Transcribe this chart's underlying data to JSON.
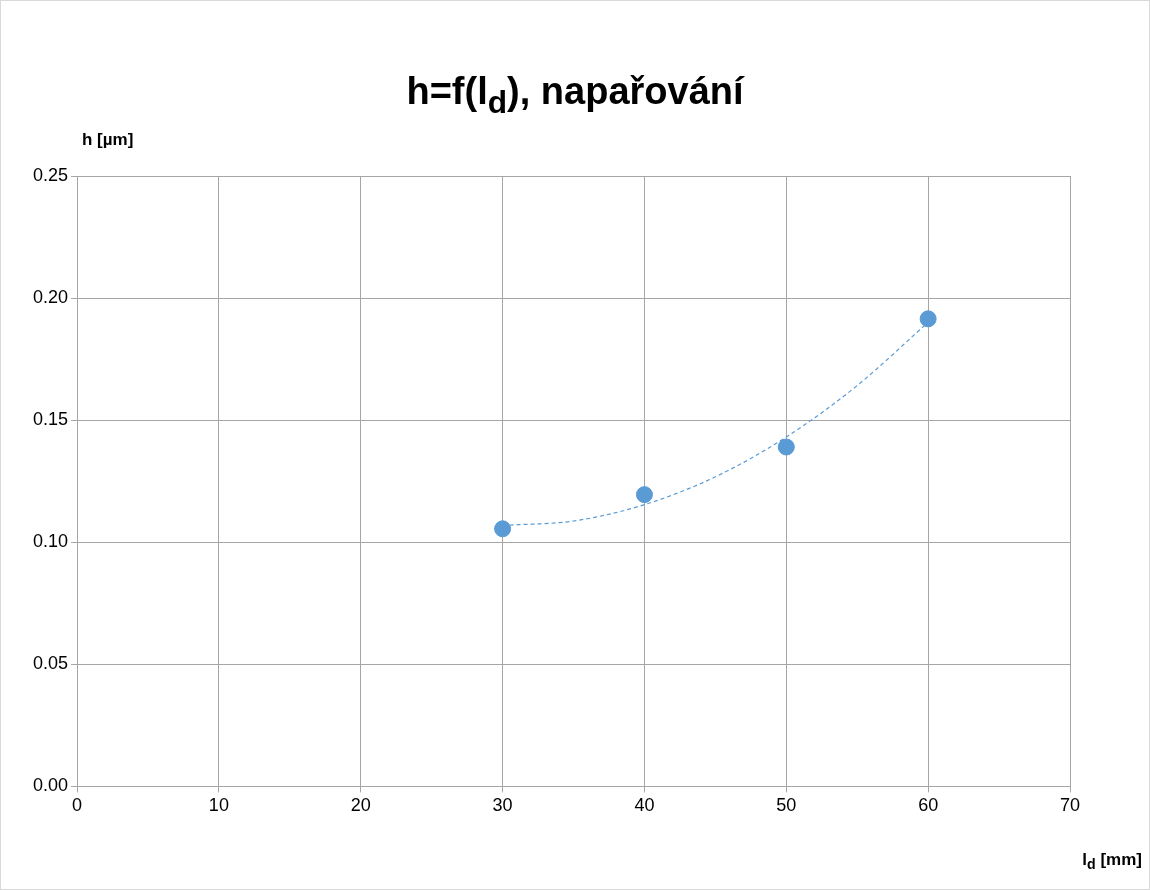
{
  "chart_data": {
    "type": "scatter",
    "title": "h=f(l$_{d}$), napařování",
    "xlabel": "l$_{d}$ [mm]",
    "ylabel": "h [µm]",
    "xlim": [
      0,
      70
    ],
    "xticks": [
      0,
      10,
      20,
      30,
      40,
      50,
      60,
      70
    ],
    "ylim": [
      0,
      0.25
    ],
    "yticks": [
      {
        "value": 0,
        "label": "0.00"
      },
      0.05,
      {
        "value": 0.1,
        "label": "0.10"
      },
      0.15,
      {
        "value": 0.2,
        "label": "0.20"
      },
      0.25
    ],
    "grid": true,
    "legend": false,
    "series": [
      {
        "type": "scatter",
        "color": "#5b9bd5",
        "marker": "circle",
        "x": [
          30,
          40,
          50,
          60
        ],
        "values": [
          0.1055,
          0.1195,
          0.139,
          0.1915
        ]
      },
      {
        "type": "line",
        "color": "#5b9bd5",
        "line_style": "dashed",
        "marker": "none",
        "x": [
          30,
          35,
          40,
          45,
          50,
          55,
          60
        ],
        "values": [
          0.1069,
          0.1087,
          0.1154,
          0.1268,
          0.1431,
          0.1642,
          0.1901
        ]
      }
    ]
  }
}
